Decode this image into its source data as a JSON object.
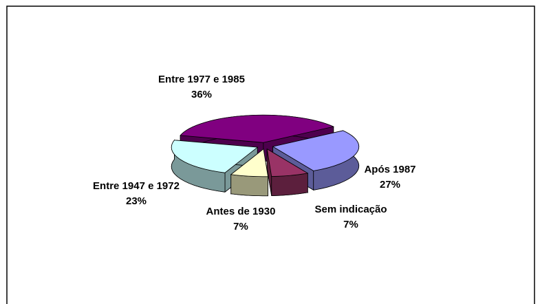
{
  "chart_data": {
    "type": "pie",
    "categories": [
      "Entre 1977 e 1985",
      "Após 1987",
      "Sem indicação",
      "Antes de 1930",
      "Entre 1947 e 1972"
    ],
    "values": [
      36,
      27,
      7,
      7,
      23
    ],
    "value_labels": [
      "36%",
      "27%",
      "7%",
      "7%",
      "23%"
    ],
    "colors": [
      "#800080",
      "#9999ff",
      "#993366",
      "#ffffcc",
      "#ccffff"
    ]
  }
}
